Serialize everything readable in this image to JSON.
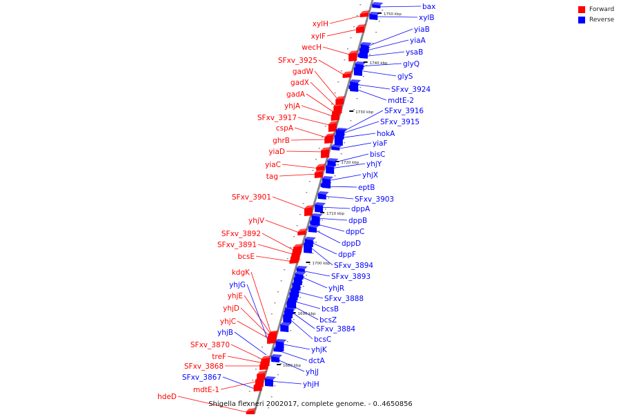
{
  "colors": {
    "forward": "#ff0000",
    "reverse": "#0000ff",
    "axis": "#888888",
    "tick": "#000000"
  },
  "legend": [
    {
      "label": "Forward",
      "color": "#ff0000"
    },
    {
      "label": "Reverse",
      "color": "#0000ff"
    }
  ],
  "caption": "Shigella flexneri 2002017, complete genome. - 0..4650856",
  "tick_labels": [
    "1750 kbp",
    "1740 kbp",
    "1730 kbp",
    "1720 kbp",
    "1710 kbp",
    "1700 kbp",
    "1690 kbp",
    "1680 kbp"
  ],
  "genes": {
    "forward": [
      "xylH",
      "xylF",
      "wecH",
      "SFxv_3925",
      "gadW",
      "gadX",
      "gadA",
      "yhjA",
      "SFxv_3917",
      "cspA",
      "ghrB",
      "yiaD",
      "yiaC",
      "tag",
      "SFxv_3901",
      "yhjV",
      "SFxv_3892",
      "SFxv_3891",
      "bcsE",
      "kdgK",
      "yhjE",
      "yhjD",
      "yhjC",
      "SFxv_3870",
      "treF",
      "SFxv_3868",
      "mdtE-1",
      "hdeD"
    ],
    "forward_blue_labels": [
      "yhjG",
      "yhjB",
      "SFxv_3867"
    ],
    "reverse": [
      "bax",
      "xylB",
      "yiaB",
      "yiaA",
      "ysaB",
      "glyQ",
      "glyS",
      "SFxv_3924",
      "mdtE-2",
      "SFxv_3916",
      "SFxv_3915",
      "hokA",
      "yiaF",
      "bisC",
      "yhjY",
      "yhjX",
      "eptB",
      "SFxv_3903",
      "dppA",
      "dppB",
      "dppC",
      "dppD",
      "dppF",
      "SFxv_3894",
      "SFxv_3893",
      "yhjR",
      "SFxv_3888",
      "bcsB",
      "bcsZ",
      "SFxv_3884",
      "bcsC",
      "yhjK",
      "dctA",
      "yhjJ",
      "yhjH"
    ]
  }
}
